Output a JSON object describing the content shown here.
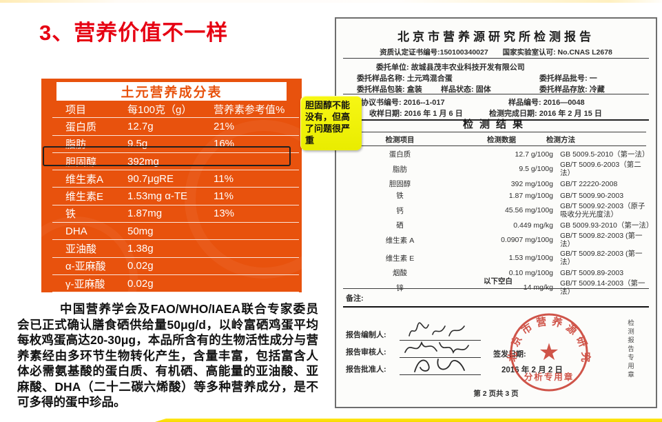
{
  "slide": {
    "title": "3、营养价值不一样",
    "paragraph": "中国营养学会及FAO/WHO/IAEA联合专家委员会已正式确认膳食硒供给量50μg/d，以岭富硒鸡蛋平均每枚鸡蛋高达20-30μg，本品所含有的生物活性成分与营养素经由多环节生物转化产生，含量丰富，包括富含人体必需氨基酸的蛋白质、有机硒、高能量的亚油酸、亚麻酸、DHA（二十二碳六烯酸）等多种营养成分，是不可多得的蛋中珍品。",
    "accent_orange": "#e8520d",
    "accent_red": "#e60012",
    "callout_yellow": "#f2f20a",
    "bottom_bar_yellow": "#ffdf00"
  },
  "nutrition_table": {
    "title": "土元营养成分表",
    "columns": [
      "项目",
      "每100克（g）",
      "营养素参考值%"
    ],
    "rows": [
      {
        "name": "蛋白质",
        "value": "12.7g",
        "ref": "21%"
      },
      {
        "name": "脂肪",
        "value": "9.5g",
        "ref": "16%"
      },
      {
        "name": "胆固醇",
        "value": "392mg",
        "ref": "",
        "highlighted": true
      },
      {
        "name": "维生素A",
        "value": "90.7μgRE",
        "ref": "11%"
      },
      {
        "name": "维生素E",
        "value": "1.53mg α-TE",
        "ref": "11%"
      },
      {
        "name": "铁",
        "value": "1.87mg",
        "ref": "13%"
      },
      {
        "name": "DHA",
        "value": "50mg",
        "ref": ""
      },
      {
        "name": "亚油酸",
        "value": "1.38g",
        "ref": ""
      },
      {
        "name": "α-亚麻酸",
        "value": "0.02g",
        "ref": ""
      },
      {
        "name": "γ-亚麻酸",
        "value": "0.02g",
        "ref": ""
      }
    ]
  },
  "callout": {
    "text": "胆固醇不能没有，但高了问题很严重"
  },
  "report": {
    "title": "北京市营养源研究所检测报告",
    "cert_left": "资质认定证书编号:150100340027",
    "cert_right": "国家实验室认可: No.CNAS L2678",
    "client": "委托单位: 故城县茂丰农业科技开发有限公司",
    "sample_name": "委托样品名称: 土元鸡混合蛋",
    "sample_batch": "委托样品批号: 一",
    "sample_pack": "委托样品包装: 盒装",
    "sample_state": "样品状态: 固体",
    "sample_storage": "委托样品存放: 冷藏",
    "agreement_no": "委托协议书编号: 2016--1-017",
    "sample_no": "样品编号: 2016—0048",
    "receive_date": "收样日期: 2016 年 1 月 6 日",
    "complete_date": "检测完成日期: 2016 年 2 月 15 日",
    "result_heading": "检测结果",
    "result_columns": [
      "检测项目",
      "检测数据",
      "检测方法"
    ],
    "results": [
      {
        "item": "蛋白质",
        "value": "12.7 g/100g",
        "method": "GB 5009.5-2010（第一法）"
      },
      {
        "item": "脂肪",
        "value": "9.5 g/100g",
        "method": "GB/T 5009.6-2003（第二法）"
      },
      {
        "item": "胆固醇",
        "value": "392 mg/100g",
        "method": "GB/T 22220-2008"
      },
      {
        "item": "铁",
        "value": "1.87 mg/100g",
        "method": "GB/T 5009.90-2003"
      },
      {
        "item": "钙",
        "value": "45.56 mg/100g",
        "method": "GB/T 5009.92-2003（原子吸收分光光度法）"
      },
      {
        "item": "硒",
        "value": "0.449 mg/kg",
        "method": "GB 5009.93-2010（第一法）"
      },
      {
        "item": "维生素 A",
        "value": "0.0907 mg/100g",
        "method": "GB/T 5009.82-2003 (第一法）"
      },
      {
        "item": "维生素 E",
        "value": "1.53 mg/100g",
        "method": "GB/T 5009.82-2003 (第一法）"
      },
      {
        "item": "烟酸",
        "value": "0.10 mg/100g",
        "method": "GB/T 5009.89-2003"
      },
      {
        "item": "锌",
        "value": "14 mg/kg",
        "method": "GB/T 5009.14-2003（第一法）"
      }
    ],
    "below_blank": "以下空白",
    "remark_label": "备注:",
    "signoff": {
      "prepared_label": "报告编制人:",
      "reviewed_label": "报告审核人:",
      "approved_label": "报告批准人:",
      "issue_date_label": "签发日期:",
      "issue_date": "2016 年 2 月 2 日"
    },
    "stamp": {
      "ring_text": "北京市营养源研究所",
      "bottom_text": "分析专用章",
      "color": "#c8372b"
    },
    "side_vertical_text": "检测报告专用章",
    "page_footer": "第 2 页共 3 页"
  }
}
